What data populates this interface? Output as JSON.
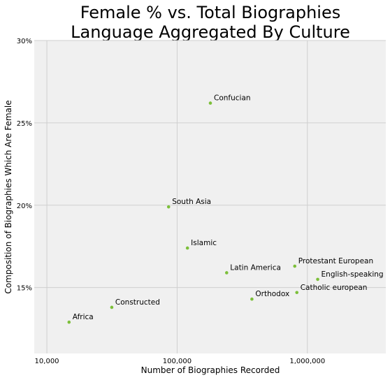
{
  "chart_data": {
    "type": "scatter",
    "title_lines": [
      "Female % vs. Total Biographies",
      "Language Aggregated By Culture"
    ],
    "xlabel": "Number of Biographies Recorded",
    "ylabel": "Composition of Biographies Which Are Female",
    "x_scale": "log",
    "xlim": [
      8000,
      4000000
    ],
    "ylim": [
      0.11,
      0.3
    ],
    "x_ticks": [
      {
        "value": 10000,
        "label": "10,000"
      },
      {
        "value": 100000,
        "label": "100,000"
      },
      {
        "value": 1000000,
        "label": "1,000,000"
      }
    ],
    "y_ticks": [
      {
        "value": 0.15,
        "label": "15%"
      },
      {
        "value": 0.2,
        "label": "20%"
      },
      {
        "value": 0.25,
        "label": "25%"
      },
      {
        "value": 0.3,
        "label": "30%"
      }
    ],
    "grid": true,
    "colors": {
      "point": "#7cbf3a",
      "grid": "#cfcfcf",
      "plot_bg": "#f0f0f0"
    },
    "points": [
      {
        "name": "Confucian",
        "x": 180000,
        "y": 0.262
      },
      {
        "name": "South Asia",
        "x": 86000,
        "y": 0.199
      },
      {
        "name": "Islamic",
        "x": 120000,
        "y": 0.174
      },
      {
        "name": "Latin America",
        "x": 240000,
        "y": 0.159
      },
      {
        "name": "Protestant European",
        "x": 800000,
        "y": 0.163
      },
      {
        "name": "English-speaking",
        "x": 1200000,
        "y": 0.155
      },
      {
        "name": "Catholic european",
        "x": 830000,
        "y": 0.147
      },
      {
        "name": "Orthodox",
        "x": 375000,
        "y": 0.143
      },
      {
        "name": "Constructed",
        "x": 31500,
        "y": 0.138
      },
      {
        "name": "Africa",
        "x": 14800,
        "y": 0.129
      }
    ]
  }
}
